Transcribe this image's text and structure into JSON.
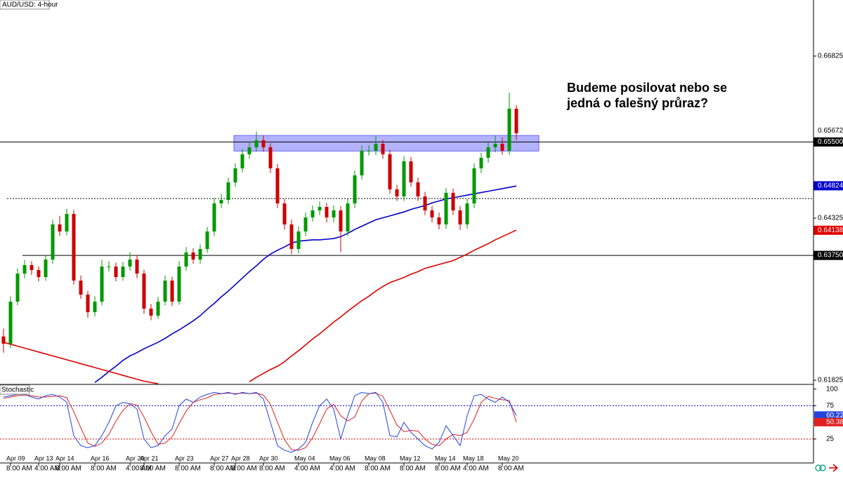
{
  "chart_data": {
    "type": "candlestick",
    "title": "AUD/USD: 4-hour",
    "annotation": [
      "Budeme posilovat nebo se",
      "jedná o falešný průraz?"
    ],
    "up_color": "#009900",
    "down_color": "#cc0000",
    "categories": [
      null,
      [
        "Apr 09",
        "8:00 AM"
      ],
      null,
      null,
      null,
      [
        "Apr 13",
        "4:00 AM"
      ],
      null,
      null,
      [
        "Apr 14",
        "8:00 AM"
      ],
      null,
      null,
      null,
      null,
      [
        "Apr 16",
        "8:00 AM"
      ],
      null,
      null,
      null,
      null,
      [
        "Apr 20",
        "4:00 AM"
      ],
      null,
      [
        "Apr 21",
        "8:00 AM"
      ],
      null,
      null,
      null,
      null,
      [
        "Apr 23",
        "8:00 AM"
      ],
      null,
      null,
      null,
      null,
      [
        "Apr 27",
        "8:00 AM"
      ],
      null,
      null,
      [
        "Apr 28",
        "8:00 AM"
      ],
      null,
      null,
      null,
      [
        "Apr 30",
        "8:00 AM"
      ],
      null,
      null,
      null,
      null,
      [
        "May 04",
        "4:00 AM"
      ],
      null,
      null,
      null,
      null,
      [
        "May 06",
        "4:00 AM"
      ],
      null,
      null,
      null,
      null,
      [
        "May 08",
        "8:00 AM"
      ],
      null,
      null,
      null,
      null,
      [
        "May 12",
        "8:00 AM"
      ],
      null,
      null,
      null,
      null,
      [
        "May 14",
        "8:00 AM"
      ],
      null,
      null,
      null,
      [
        "May 18",
        "4:00 AM"
      ],
      null,
      null,
      null,
      null,
      [
        "May 20",
        "8:00 AM"
      ],
      null,
      null
    ],
    "ohlc": [
      [
        0.625,
        0.6262,
        0.6225,
        0.62388
      ],
      [
        0.62388,
        0.6312,
        0.6232,
        0.63037
      ],
      [
        0.63037,
        0.6355,
        0.6298,
        0.6347
      ],
      [
        0.6347,
        0.6368,
        0.634,
        0.636
      ],
      [
        0.636,
        0.6366,
        0.6345,
        0.63524
      ],
      [
        0.63524,
        0.6358,
        0.6335,
        0.63416
      ],
      [
        0.63416,
        0.6375,
        0.6336,
        0.63686
      ],
      [
        0.63686,
        0.643,
        0.6362,
        0.64228
      ],
      [
        0.64228,
        0.6436,
        0.6405,
        0.64119
      ],
      [
        0.64119,
        0.6447,
        0.6406,
        0.6439
      ],
      [
        0.6439,
        0.6445,
        0.633,
        0.63362
      ],
      [
        0.63362,
        0.6344,
        0.6308,
        0.63145
      ],
      [
        0.63145,
        0.632,
        0.6279,
        0.62875
      ],
      [
        0.62875,
        0.6312,
        0.6281,
        0.63037
      ],
      [
        0.63037,
        0.6368,
        0.6298,
        0.63578
      ],
      [
        0.63578,
        0.6366,
        0.635,
        0.63578
      ],
      [
        0.63578,
        0.6364,
        0.6335,
        0.63416
      ],
      [
        0.63416,
        0.6365,
        0.6336,
        0.63578
      ],
      [
        0.63578,
        0.638,
        0.6351,
        0.63686
      ],
      [
        0.63686,
        0.6375,
        0.634,
        0.6347
      ],
      [
        0.6347,
        0.6353,
        0.6285,
        0.62929
      ],
      [
        0.62929,
        0.63,
        0.6275,
        0.6282
      ],
      [
        0.6282,
        0.6311,
        0.6277,
        0.63037
      ],
      [
        0.63037,
        0.6344,
        0.6298,
        0.63362
      ],
      [
        0.63362,
        0.6342,
        0.6297,
        0.63037
      ],
      [
        0.63037,
        0.6366,
        0.6299,
        0.63578
      ],
      [
        0.63578,
        0.6388,
        0.6351,
        0.63795
      ],
      [
        0.63795,
        0.6386,
        0.6362,
        0.63686
      ],
      [
        0.63686,
        0.6392,
        0.6362,
        0.63849
      ],
      [
        0.63849,
        0.6419,
        0.6379,
        0.64119
      ],
      [
        0.64119,
        0.6463,
        0.6405,
        0.64552
      ],
      [
        0.64552,
        0.647,
        0.6448,
        0.64606
      ],
      [
        0.64606,
        0.6495,
        0.6454,
        0.64877
      ],
      [
        0.64877,
        0.6517,
        0.6481,
        0.65093
      ],
      [
        0.65093,
        0.6539,
        0.6503,
        0.6531
      ],
      [
        0.6531,
        0.655,
        0.6524,
        0.65418
      ],
      [
        0.65418,
        0.6566,
        0.6535,
        0.65526
      ],
      [
        0.65526,
        0.656,
        0.6535,
        0.65418
      ],
      [
        0.65418,
        0.6548,
        0.6502,
        0.65093
      ],
      [
        0.65093,
        0.6516,
        0.6448,
        0.64552
      ],
      [
        0.64552,
        0.6462,
        0.6415,
        0.64228
      ],
      [
        0.64228,
        0.643,
        0.6377,
        0.63849
      ],
      [
        0.63849,
        0.642,
        0.6378,
        0.64119
      ],
      [
        0.64119,
        0.6441,
        0.6405,
        0.64336
      ],
      [
        0.64336,
        0.6452,
        0.6427,
        0.64444
      ],
      [
        0.64444,
        0.6458,
        0.6437,
        0.64498
      ],
      [
        0.64498,
        0.6456,
        0.6426,
        0.64336
      ],
      [
        0.64336,
        0.6452,
        0.6426,
        0.64444
      ],
      [
        0.64444,
        0.6451,
        0.638,
        0.64119
      ],
      [
        0.64119,
        0.6463,
        0.6405,
        0.64552
      ],
      [
        0.64552,
        0.6506,
        0.6448,
        0.64985
      ],
      [
        0.64985,
        0.6544,
        0.6492,
        0.65364
      ],
      [
        0.65364,
        0.6545,
        0.6529,
        0.65364
      ],
      [
        0.65364,
        0.656,
        0.653,
        0.65472
      ],
      [
        0.65472,
        0.6553,
        0.6524,
        0.6531
      ],
      [
        0.6531,
        0.6538,
        0.647,
        0.64769
      ],
      [
        0.64769,
        0.6484,
        0.6459,
        0.6466
      ],
      [
        0.6466,
        0.6528,
        0.6459,
        0.65202
      ],
      [
        0.65202,
        0.6527,
        0.6481,
        0.64877
      ],
      [
        0.64877,
        0.6495,
        0.6459,
        0.6466
      ],
      [
        0.6466,
        0.6473,
        0.6437,
        0.64444
      ],
      [
        0.64444,
        0.6451,
        0.6426,
        0.64336
      ],
      [
        0.64336,
        0.6441,
        0.6415,
        0.64228
      ],
      [
        0.64228,
        0.6479,
        0.6416,
        0.64715
      ],
      [
        0.64715,
        0.6478,
        0.6437,
        0.64444
      ],
      [
        0.64444,
        0.6451,
        0.6414,
        0.64228
      ],
      [
        0.64228,
        0.6462,
        0.6416,
        0.64552
      ],
      [
        0.64552,
        0.6517,
        0.6448,
        0.65093
      ],
      [
        0.65093,
        0.6533,
        0.6502,
        0.65256
      ],
      [
        0.65256,
        0.6549,
        0.6518,
        0.65418
      ],
      [
        0.65418,
        0.656,
        0.6534,
        0.65472
      ],
      [
        0.65472,
        0.6557,
        0.653,
        0.65364
      ],
      [
        0.65364,
        0.6626,
        0.653,
        0.66013
      ],
      [
        0.66013,
        0.6607,
        0.6553,
        0.65635
      ]
    ],
    "moving_averages": [
      {
        "color": "#0000cc",
        "values": [
          null,
          null,
          null,
          null,
          null,
          null,
          null,
          null,
          null,
          null,
          null,
          null,
          null,
          0.6179,
          0.6187,
          0.6196,
          0.6204,
          0.6213,
          0.622,
          0.6225,
          0.6231,
          0.6236,
          0.6241,
          0.6247,
          0.6254,
          0.626,
          0.6267,
          0.6274,
          0.6282,
          0.6292,
          0.6301,
          0.6311,
          0.632,
          0.633,
          0.634,
          0.635,
          0.6359,
          0.6369,
          0.6377,
          0.6383,
          0.6388,
          0.6394,
          0.6397,
          0.6398,
          0.6399,
          0.6399,
          0.64,
          0.6401,
          0.6404,
          0.6409,
          0.6415,
          0.642,
          0.6425,
          0.643,
          0.6433,
          0.6436,
          0.6439,
          0.6442,
          0.6446,
          0.6449,
          0.6452,
          0.6456,
          0.6459,
          0.6462,
          0.6464,
          0.6466,
          0.6468,
          0.647,
          0.6472,
          0.6474,
          0.6476,
          0.6478,
          0.648,
          0.6482
        ]
      },
      {
        "color": "#e00000",
        "values": [
          0.6241,
          0.6238,
          0.6235,
          0.6232,
          0.6229,
          0.6226,
          0.6223,
          0.622,
          0.6217,
          0.6214,
          0.6211,
          0.6208,
          0.6205,
          0.6202,
          0.6199,
          0.6196,
          0.6193,
          0.619,
          0.6187,
          0.6184,
          0.6181,
          0.6179,
          0.6177,
          null,
          null,
          null,
          null,
          null,
          null,
          null,
          null,
          null,
          null,
          null,
          null,
          0.618,
          0.6187,
          0.6193,
          0.6199,
          0.6204,
          0.6211,
          0.622,
          0.6228,
          0.6237,
          0.6246,
          0.6254,
          0.6263,
          0.6272,
          0.628,
          0.6289,
          0.6297,
          0.6305,
          0.6312,
          0.632,
          0.6327,
          0.6333,
          0.6337,
          0.6341,
          0.6346,
          0.635,
          0.6355,
          0.6358,
          0.6361,
          0.6364,
          0.6367,
          0.6372,
          0.6377,
          0.6383,
          0.6388,
          0.6393,
          0.6399,
          0.6404,
          0.6409,
          0.6414
        ]
      }
    ],
    "ylim": [
      0.6176,
      0.6769
    ],
    "yticks": [
      0.66825,
      0.64325,
      0.61825
    ],
    "levels": [
      {
        "value": 0.655,
        "style": "solid"
      },
      {
        "value": 0.64628,
        "style": "dotted"
      },
      {
        "value": 0.6375,
        "style": "solid"
      }
    ],
    "zone": {
      "range": [
        0.6536,
        0.656
      ],
      "color": "#6666ff"
    },
    "price_markers": [
      {
        "value": 0.65672,
        "color": "#ffffff"
      },
      {
        "value": 0.655,
        "label": "0.65500",
        "color": "#000000"
      },
      {
        "value": 0.64824,
        "color": "#0000cc"
      },
      {
        "value": 0.64138,
        "color": "#e00000"
      },
      {
        "value": 0.6375,
        "label": "0.63750",
        "color": "#000000"
      }
    ],
    "stochastic": {
      "title": "Stochastic",
      "ylim": [
        -11,
        107
      ],
      "yticks": [
        100,
        75,
        50,
        25
      ],
      "levels": [
        {
          "value": 75,
          "color": "#0000cc"
        },
        {
          "value": 25,
          "color": "#e00000"
        }
      ],
      "k": {
        "color": "#2244dd",
        "values": [
          88,
          90,
          92,
          92,
          88,
          85,
          90,
          92,
          88,
          80,
          30,
          15,
          12,
          15,
          30,
          50,
          75,
          80,
          78,
          70,
          25,
          12,
          15,
          30,
          40,
          75,
          85,
          80,
          88,
          92,
          95,
          93,
          95,
          92,
          95,
          93,
          95,
          85,
          50,
          15,
          8,
          5,
          10,
          20,
          50,
          75,
          85,
          70,
          25,
          60,
          90,
          95,
          93,
          95,
          80,
          30,
          28,
          50,
          35,
          25,
          15,
          10,
          20,
          45,
          30,
          15,
          60,
          90,
          92,
          85,
          80,
          88,
          80,
          60.22
        ]
      },
      "d": {
        "color": "#e02020",
        "values": [
          86,
          88,
          90,
          91,
          90,
          88,
          88,
          89,
          90,
          87,
          66,
          42,
          19,
          14,
          19,
          32,
          52,
          68,
          78,
          76,
          58,
          36,
          17,
          19,
          28,
          48,
          67,
          80,
          84,
          87,
          92,
          93,
          94,
          93,
          94,
          93,
          94,
          91,
          77,
          50,
          24,
          9,
          8,
          12,
          27,
          48,
          70,
          77,
          60,
          52,
          58,
          82,
          93,
          94,
          89,
          68,
          46,
          36,
          38,
          37,
          25,
          17,
          15,
          25,
          32,
          30,
          35,
          55,
          80,
          89,
          86,
          84,
          83,
          50.38
        ]
      }
    }
  }
}
